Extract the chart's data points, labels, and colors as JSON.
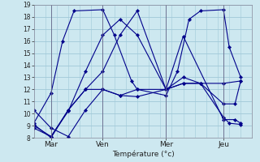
{
  "xlabel": "Température (°c)",
  "ylim": [
    8,
    19
  ],
  "xlim": [
    0,
    19
  ],
  "yticks": [
    8,
    9,
    10,
    11,
    12,
    13,
    14,
    15,
    16,
    17,
    18,
    19
  ],
  "xtick_labels": [
    "Mar",
    "Ven",
    "Mer",
    "Jeu"
  ],
  "xtick_positions": [
    1.5,
    6.0,
    11.5,
    16.5
  ],
  "vlines": [
    1.5,
    6.0,
    11.5,
    16.5
  ],
  "bg_color": "#cde8f0",
  "grid_color": "#a0c8d8",
  "line_color": "#00008b",
  "lines": [
    {
      "x": [
        0,
        1.5,
        3,
        4.5,
        6,
        7.5,
        9,
        11.5,
        13,
        14.5,
        16.5,
        18
      ],
      "y": [
        10.3,
        8.8,
        8.1,
        10.3,
        12.0,
        11.5,
        11.4,
        12.0,
        12.5,
        12.5,
        12.5,
        12.7
      ]
    },
    {
      "x": [
        0,
        1.5,
        2.5,
        3.5,
        6,
        7,
        8.5,
        9,
        11.5,
        12.5,
        13.5,
        14.5,
        16.5,
        17,
        18
      ],
      "y": [
        9.2,
        11.7,
        16.0,
        18.5,
        18.6,
        16.5,
        12.7,
        12.0,
        11.5,
        13.5,
        17.8,
        18.5,
        18.6,
        15.5,
        13.0
      ]
    },
    {
      "x": [
        0,
        1.5,
        3,
        4.5,
        6,
        7.5,
        9,
        11.5,
        13,
        16.5,
        17.5,
        18
      ],
      "y": [
        9.0,
        8.1,
        10.2,
        13.5,
        16.5,
        17.8,
        16.5,
        12.0,
        16.4,
        9.5,
        9.5,
        9.2
      ]
    },
    {
      "x": [
        0,
        1.5,
        3,
        4.5,
        6,
        7.5,
        9,
        11.5,
        13,
        14.5,
        16.5,
        17,
        18
      ],
      "y": [
        8.8,
        8.1,
        10.3,
        12.0,
        13.5,
        16.5,
        18.5,
        12.0,
        13.0,
        12.5,
        9.7,
        9.2,
        9.1
      ]
    },
    {
      "x": [
        0,
        1.5,
        3,
        4.5,
        6,
        7.5,
        9,
        11.5,
        13,
        14.5,
        16.5,
        17.5,
        18
      ],
      "y": [
        9.1,
        8.0,
        10.3,
        12.0,
        12.0,
        11.5,
        12.0,
        12.0,
        12.5,
        12.5,
        10.8,
        10.8,
        12.7
      ]
    }
  ]
}
